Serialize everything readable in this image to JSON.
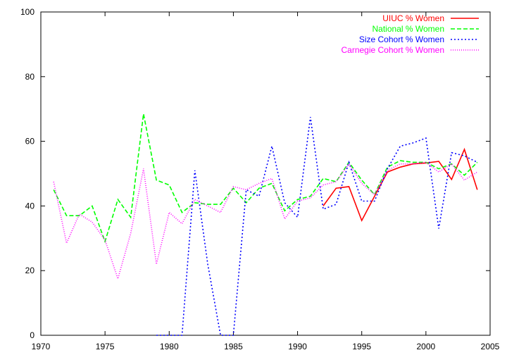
{
  "chart_data": {
    "type": "line",
    "title": "",
    "xlabel": "",
    "ylabel": "",
    "xlim": [
      1970,
      2005
    ],
    "ylim": [
      0,
      100
    ],
    "xticks": [
      1970,
      1975,
      1980,
      1985,
      1990,
      1995,
      2000,
      2005
    ],
    "yticks": [
      0,
      20,
      40,
      60,
      80,
      100
    ],
    "grid": false,
    "legend_position": "top-right",
    "series": [
      {
        "name": "UIUC % Women",
        "color": "#ff0000",
        "dash": "solid",
        "points": [
          [
            1992,
            40
          ],
          [
            1993,
            45.5
          ],
          [
            1994,
            46
          ],
          [
            1995,
            35.5
          ],
          [
            1996,
            43
          ],
          [
            1997,
            50.5
          ],
          [
            1998,
            52
          ],
          [
            1999,
            53
          ],
          [
            2000,
            53.3
          ],
          [
            2001,
            53.8
          ],
          [
            2002,
            48.2
          ],
          [
            2003,
            57.5
          ],
          [
            2004,
            45
          ]
        ]
      },
      {
        "name": "National % Women",
        "color": "#00ff00",
        "dash": "dashed",
        "points": [
          [
            1971,
            45
          ],
          [
            1972,
            37
          ],
          [
            1973,
            37
          ],
          [
            1974,
            40
          ],
          [
            1975,
            29
          ],
          [
            1976,
            42
          ],
          [
            1977,
            36.5
          ],
          [
            1978,
            68.5
          ],
          [
            1979,
            48
          ],
          [
            1980,
            46.5
          ],
          [
            1981,
            38
          ],
          [
            1982,
            41
          ],
          [
            1983,
            40.5
          ],
          [
            1984,
            40.5
          ],
          [
            1985,
            45.5
          ],
          [
            1986,
            41
          ],
          [
            1987,
            45.5
          ],
          [
            1988,
            47
          ],
          [
            1989,
            38.5
          ],
          [
            1990,
            42
          ],
          [
            1991,
            43
          ],
          [
            1992,
            48.5
          ],
          [
            1993,
            47.5
          ],
          [
            1994,
            53.5
          ],
          [
            1995,
            48
          ],
          [
            1996,
            43.5
          ],
          [
            1997,
            52
          ],
          [
            1998,
            54
          ],
          [
            1999,
            53.5
          ],
          [
            2000,
            53.5
          ],
          [
            2001,
            51.5
          ],
          [
            2002,
            53
          ],
          [
            2003,
            49.5
          ],
          [
            2004,
            53.5
          ]
        ]
      },
      {
        "name": "Size Cohort % Women",
        "color": "#0000ff",
        "dash": "dotted",
        "points": [
          [
            1979,
            0
          ],
          [
            1980,
            0
          ],
          [
            1981,
            0
          ],
          [
            1982,
            51
          ],
          [
            1983,
            22
          ],
          [
            1984,
            0
          ],
          [
            1985,
            0
          ],
          [
            1986,
            45
          ],
          [
            1987,
            43
          ],
          [
            1988,
            58.5
          ],
          [
            1989,
            41
          ],
          [
            1990,
            36.5
          ],
          [
            1991,
            67.5
          ],
          [
            1992,
            39
          ],
          [
            1993,
            40.5
          ],
          [
            1994,
            53.5
          ],
          [
            1995,
            41.5
          ],
          [
            1996,
            41.5
          ],
          [
            1997,
            51.5
          ],
          [
            1998,
            58.5
          ],
          [
            1999,
            59.5
          ],
          [
            2000,
            61
          ],
          [
            2001,
            33
          ],
          [
            2002,
            56.5
          ],
          [
            2003,
            55.5
          ],
          [
            2004,
            53.5
          ]
        ]
      },
      {
        "name": "Carnegie Cohort % Women",
        "color": "#ff00ff",
        "dash": "fine-dotted",
        "points": [
          [
            1971,
            47.5
          ],
          [
            1972,
            28.5
          ],
          [
            1973,
            37.5
          ],
          [
            1974,
            35
          ],
          [
            1975,
            29.5
          ],
          [
            1976,
            17.5
          ],
          [
            1977,
            31.5
          ],
          [
            1978,
            51.5
          ],
          [
            1979,
            22
          ],
          [
            1980,
            38
          ],
          [
            1981,
            34.5
          ],
          [
            1982,
            42
          ],
          [
            1983,
            40
          ],
          [
            1984,
            38
          ],
          [
            1985,
            46
          ],
          [
            1986,
            45
          ],
          [
            1987,
            47
          ],
          [
            1988,
            48.5
          ],
          [
            1989,
            36
          ],
          [
            1990,
            41.5
          ],
          [
            1991,
            42.5
          ],
          [
            1992,
            46.5
          ],
          [
            1993,
            47.5
          ],
          [
            1994,
            53
          ],
          [
            1995,
            47
          ],
          [
            1996,
            43.5
          ],
          [
            1997,
            51
          ],
          [
            1998,
            53
          ],
          [
            1999,
            53
          ],
          [
            2000,
            53.5
          ],
          [
            2001,
            50.5
          ],
          [
            2002,
            53
          ],
          [
            2003,
            48
          ],
          [
            2004,
            50.5
          ]
        ]
      }
    ]
  }
}
